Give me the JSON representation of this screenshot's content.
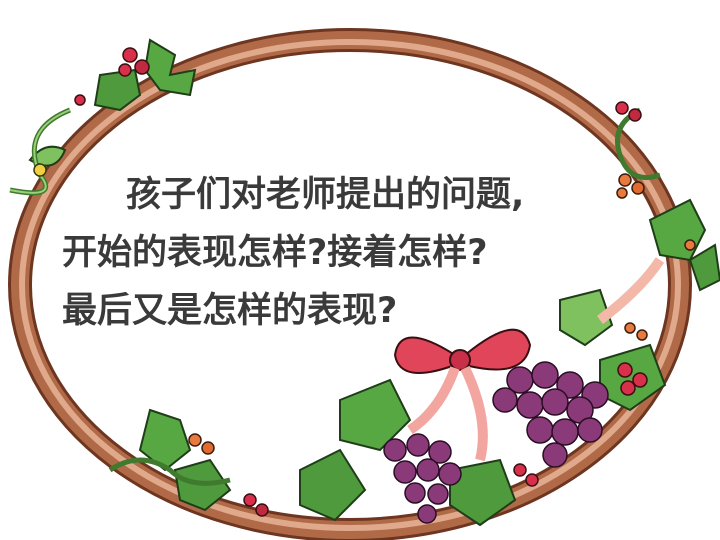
{
  "slide": {
    "question_lines": [
      "孩子们对老师提出的问题,",
      "开始的表现怎样?接着怎样?",
      "最后又是怎样的表现?"
    ],
    "icons": [
      "oval-vine-frame-icon",
      "grape-cluster-icon",
      "red-bow-icon",
      "ivy-leaf-icon",
      "red-berries-icon"
    ],
    "colors": {
      "frame": "#8a4a2e",
      "frame_highlight": "#d99d80",
      "leaf": "#4f9a3c",
      "grape": "#7a2f6a",
      "bow": "#e0455a",
      "berry": "#d8304a",
      "text": "#3a3a3a"
    }
  }
}
